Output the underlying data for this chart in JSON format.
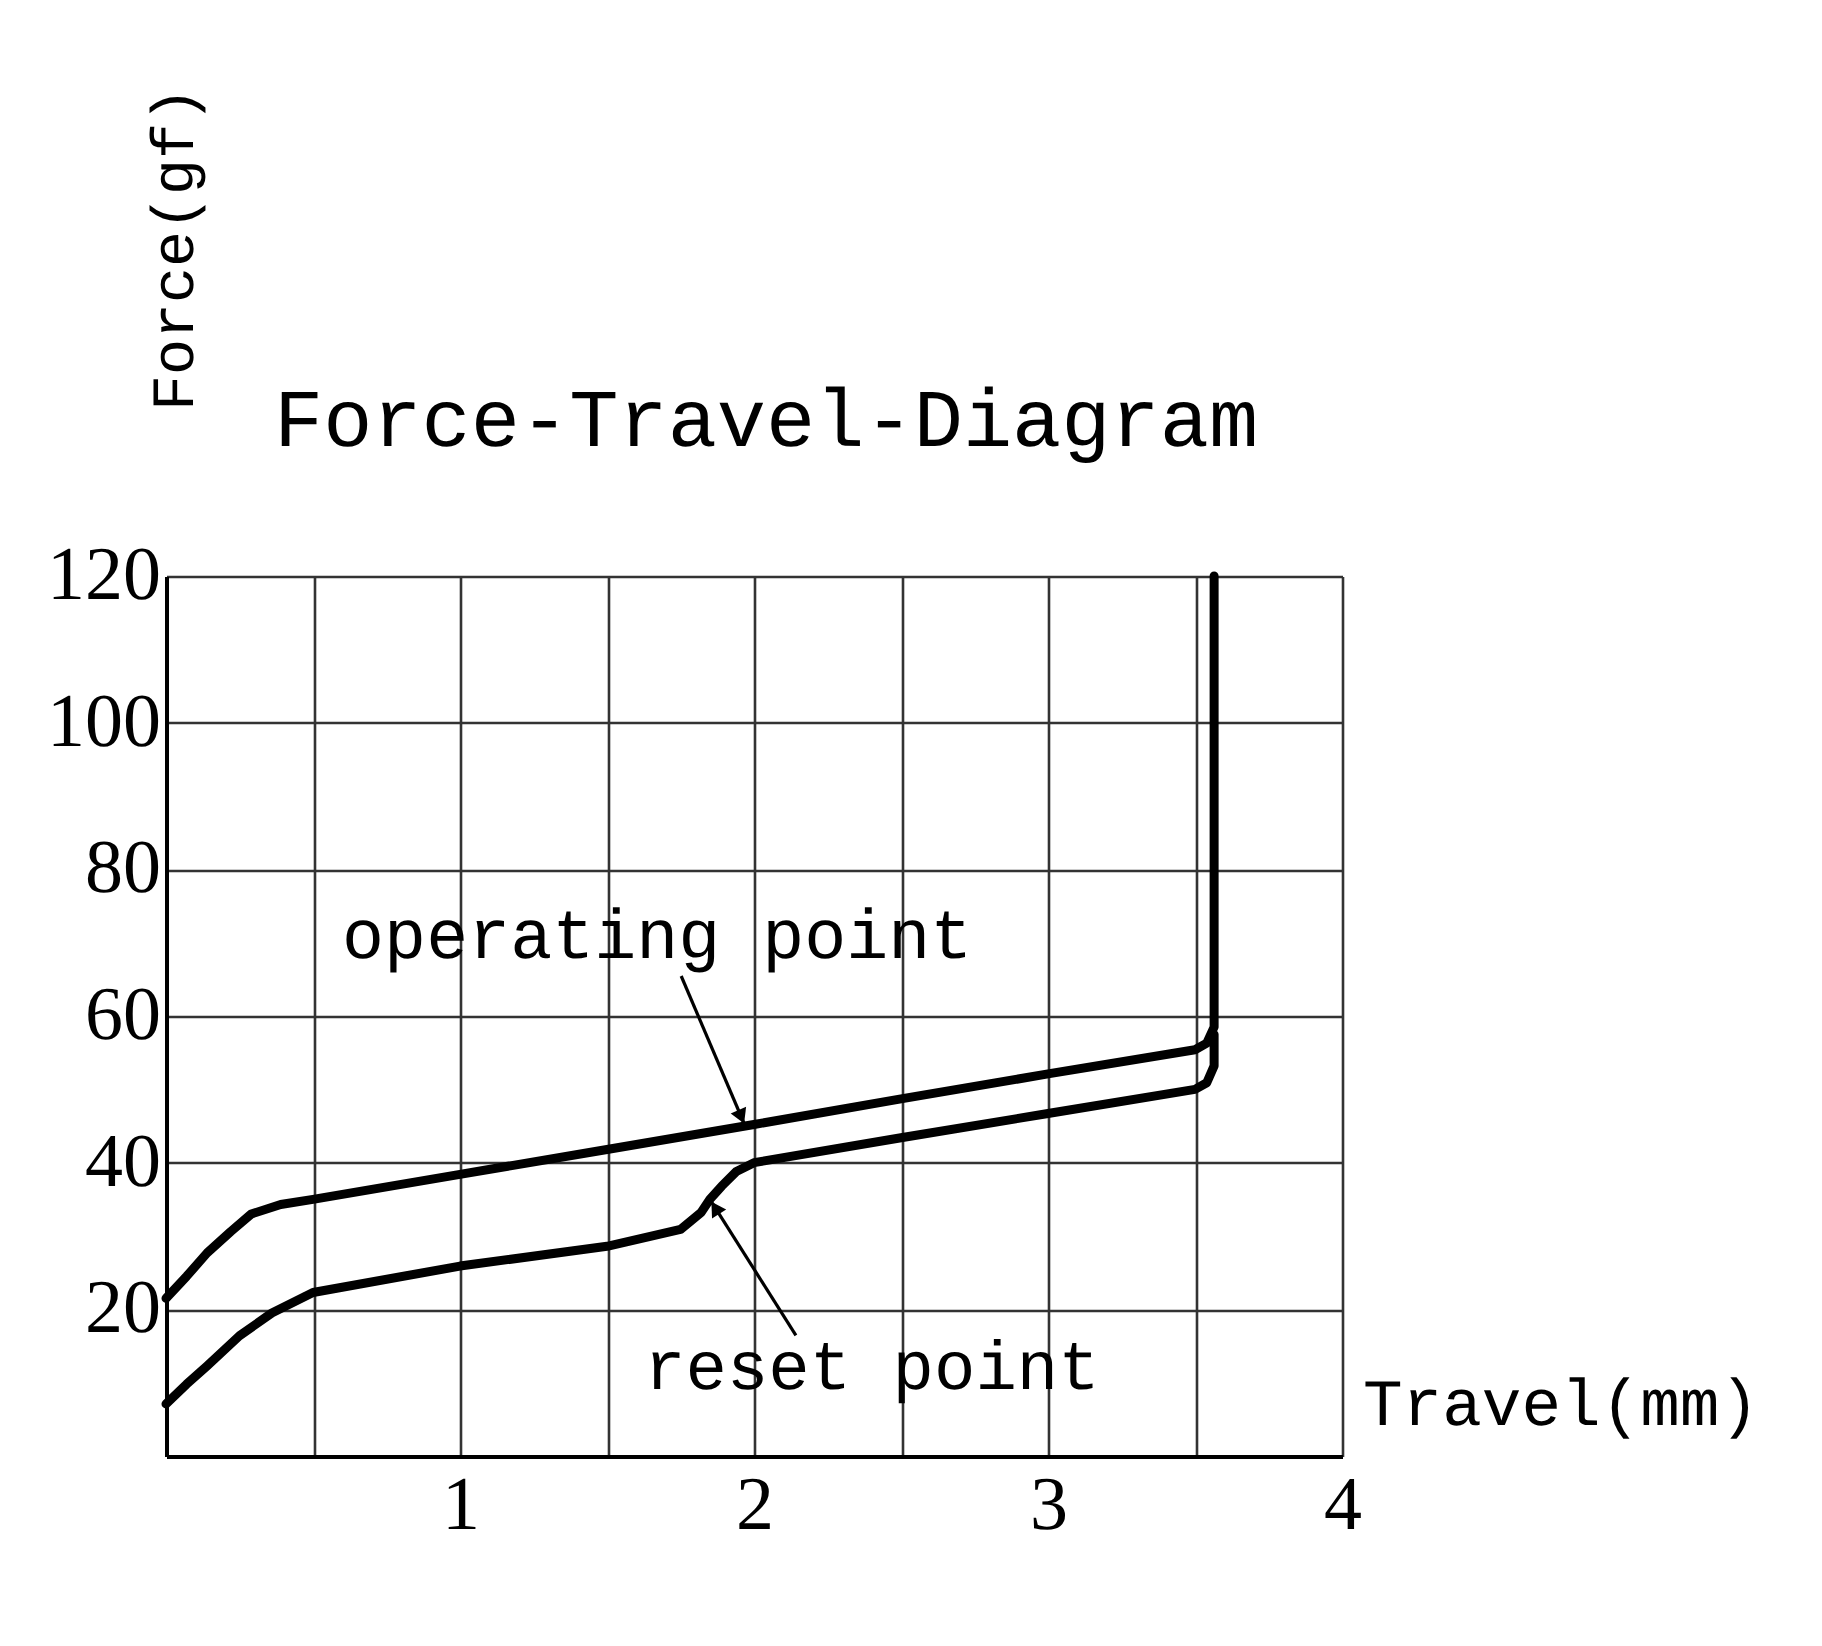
{
  "chart_data": {
    "type": "line",
    "title": "Force-Travel-Diagram",
    "xlabel": "Travel(mm)",
    "ylabel": "Force(gf)",
    "xlim": [
      0,
      4
    ],
    "ylim": [
      0,
      120
    ],
    "xticks": [
      {
        "value": 0.5,
        "label": null
      },
      1,
      {
        "value": 1.5,
        "label": null
      },
      2,
      {
        "value": 2.5,
        "label": null
      },
      3,
      {
        "value": 3.5,
        "label": null
      },
      4
    ],
    "yticks": [
      20,
      40,
      60,
      80,
      100,
      120
    ],
    "grid": true,
    "line_style": "solid",
    "series": [
      {
        "color": "#000000",
        "x": [
          0,
          0.07,
          0.14,
          0.22,
          0.29,
          0.39,
          0.5,
          1.0,
          1.5,
          2.0,
          2.5,
          3.0,
          3.5,
          3.54,
          3.565,
          3.565
        ],
        "values": [
          21.5,
          24.5,
          27.7,
          30.6,
          33.0,
          34.3,
          35.0,
          38.4,
          41.8,
          45.2,
          48.7,
          52.1,
          55.4,
          56.3,
          58.5,
          120
        ]
      },
      {
        "color": "#000000",
        "x": [
          0,
          0.07,
          0.14,
          0.25,
          0.36,
          0.5,
          1.0,
          1.5,
          1.75,
          1.82,
          1.85,
          1.89,
          1.94,
          2.0,
          2.5,
          3.0,
          3.5,
          3.54,
          3.565,
          3.565
        ],
        "values": [
          7.1,
          9.8,
          12.3,
          16.4,
          19.5,
          22.3,
          25.9,
          28.6,
          30.9,
          33.2,
          35.0,
          36.8,
          38.8,
          40.0,
          43.4,
          46.7,
          50.0,
          50.9,
          53.2,
          57.5
        ]
      }
    ],
    "annotations": [
      {
        "text": "operating point",
        "x": 1.97,
        "y": 45.0
      },
      {
        "text": "reset point",
        "x": 1.85,
        "y": 35.0
      }
    ]
  }
}
